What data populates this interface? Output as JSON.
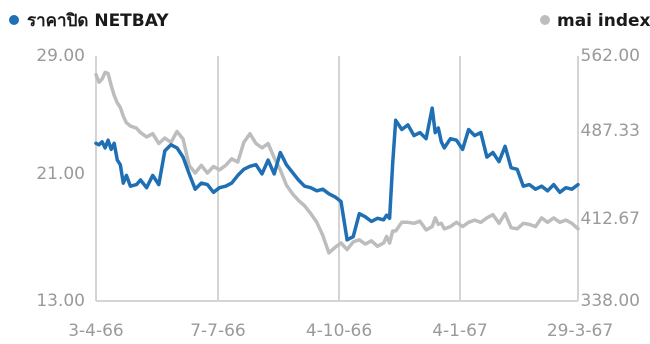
{
  "chart_data": {
    "type": "line",
    "legend": [
      {
        "label": "ราคาปิด NETBAY",
        "color": "#1f6fb5"
      },
      {
        "label": "mai index",
        "color": "#bdbdbd"
      }
    ],
    "legend_placement": "top",
    "x_labels": [
      "3-4-66",
      "7-7-66",
      "4-10-66",
      "4-1-67",
      "29-3-67"
    ],
    "left_axis": {
      "ticks": [
        "29.00",
        "21.00",
        "13.00"
      ],
      "ylim": [
        13,
        29
      ]
    },
    "right_axis": {
      "ticks": [
        "562.00",
        "487.33",
        "412.67",
        "338.00"
      ],
      "ylim": [
        338,
        562
      ]
    },
    "grid": "vertical",
    "series": [
      {
        "name": "ราคาปิด NETBAY",
        "axis": "left",
        "color": "#1f6fb5",
        "x": [
          0,
          0.0063,
          0.0126,
          0.0189,
          0.0252,
          0.0315,
          0.0378,
          0.0441,
          0.0504,
          0.0567,
          0.063,
          0.0714,
          0.084,
          0.0924,
          0.105,
          0.1176,
          0.1302,
          0.1428,
          0.1555,
          0.1681,
          0.1807,
          0.1933,
          0.2059,
          0.2185,
          0.2311,
          0.2437,
          0.2563,
          0.2689,
          0.2815,
          0.2941,
          0.3067,
          0.3193,
          0.3319,
          0.3445,
          0.3571,
          0.3697,
          0.3824,
          0.395,
          0.4076,
          0.4202,
          0.4328,
          0.4454,
          0.458,
          0.4706,
          0.4832,
          0.4958,
          0.5084,
          0.521,
          0.5336,
          0.5462,
          0.5588,
          0.5714,
          0.584,
          0.5966,
          0.6029,
          0.6092,
          0.6155,
          0.6218,
          0.6345,
          0.6471,
          0.6597,
          0.6723,
          0.6849,
          0.6975,
          0.7038,
          0.7101,
          0.7164,
          0.7227,
          0.7353,
          0.7479,
          0.7605,
          0.7731,
          0.7857,
          0.7983,
          0.8109,
          0.8235,
          0.8361,
          0.8487,
          0.8613,
          0.8739,
          0.8866,
          0.8992,
          0.9118,
          0.9244,
          0.937,
          0.9496,
          0.9622,
          0.9748,
          0.9874,
          1
        ],
        "values": [
          23.3,
          23.2,
          23.4,
          23.0,
          23.5,
          22.9,
          23.3,
          22.2,
          21.9,
          20.7,
          21.2,
          20.5,
          20.6,
          20.9,
          20.4,
          21.2,
          20.6,
          22.8,
          23.2,
          23.0,
          22.4,
          21.3,
          20.3,
          20.7,
          20.6,
          20.1,
          20.4,
          20.5,
          20.7,
          21.2,
          21.6,
          21.8,
          21.9,
          21.3,
          22.2,
          21.3,
          22.7,
          21.9,
          21.4,
          20.9,
          20.5,
          20.4,
          20.2,
          20.3,
          20.0,
          19.8,
          19.5,
          17.0,
          17.2,
          18.7,
          18.5,
          18.2,
          18.4,
          18.3,
          18.6,
          18.4,
          22.0,
          24.8,
          24.2,
          24.5,
          23.8,
          24.0,
          23.6,
          25.6,
          24.0,
          24.3,
          23.4,
          23.0,
          23.6,
          23.5,
          22.9,
          24.2,
          23.8,
          24.0,
          22.4,
          22.7,
          22.1,
          23.1,
          21.7,
          21.6,
          20.5,
          20.6,
          20.3,
          20.5,
          20.2,
          20.6,
          20.1,
          20.4,
          20.3,
          20.6
        ]
      },
      {
        "name": "mai index",
        "axis": "right",
        "color": "#bdbdbd",
        "x": [
          0,
          0.0063,
          0.0126,
          0.0189,
          0.0252,
          0.0315,
          0.0378,
          0.0441,
          0.0504,
          0.0567,
          0.063,
          0.0714,
          0.084,
          0.0924,
          0.105,
          0.1176,
          0.1302,
          0.1428,
          0.1555,
          0.1681,
          0.1807,
          0.1933,
          0.2059,
          0.2185,
          0.2311,
          0.2437,
          0.2563,
          0.2689,
          0.2815,
          0.2941,
          0.3067,
          0.3193,
          0.3319,
          0.3445,
          0.3571,
          0.3697,
          0.3824,
          0.395,
          0.4076,
          0.4202,
          0.4328,
          0.4454,
          0.458,
          0.4706,
          0.4832,
          0.4958,
          0.5084,
          0.521,
          0.5336,
          0.5462,
          0.5588,
          0.5714,
          0.584,
          0.5966,
          0.6029,
          0.6092,
          0.6155,
          0.6218,
          0.6345,
          0.6471,
          0.6597,
          0.6723,
          0.6849,
          0.6975,
          0.7038,
          0.7101,
          0.7164,
          0.7227,
          0.7353,
          0.7479,
          0.7605,
          0.7731,
          0.7857,
          0.7983,
          0.8109,
          0.8235,
          0.8361,
          0.8487,
          0.8613,
          0.8739,
          0.8866,
          0.8992,
          0.9118,
          0.9244,
          0.937,
          0.9496,
          0.9622,
          0.9748,
          0.9874,
          1
        ],
        "values": [
          545,
          538,
          541,
          547,
          546,
          535,
          526,
          519,
          515,
          507,
          501,
          498,
          496,
          492,
          488,
          491,
          482,
          487,
          483,
          493,
          486,
          462,
          455,
          462,
          455,
          461,
          458,
          462,
          468,
          465,
          483,
          491,
          482,
          478,
          482,
          469,
          458,
          444,
          436,
          430,
          425,
          418,
          410,
          398,
          382,
          387,
          391,
          385,
          392,
          394,
          390,
          393,
          388,
          391,
          397,
          391,
          402,
          402,
          410,
          410,
          409,
          411,
          403,
          406,
          414,
          408,
          409,
          404,
          406,
          410,
          406,
          410,
          412,
          410,
          414,
          417,
          409,
          418,
          405,
          404,
          409,
          408,
          406,
          414,
          410,
          414,
          410,
          412,
          409,
          404
        ]
      }
    ]
  }
}
